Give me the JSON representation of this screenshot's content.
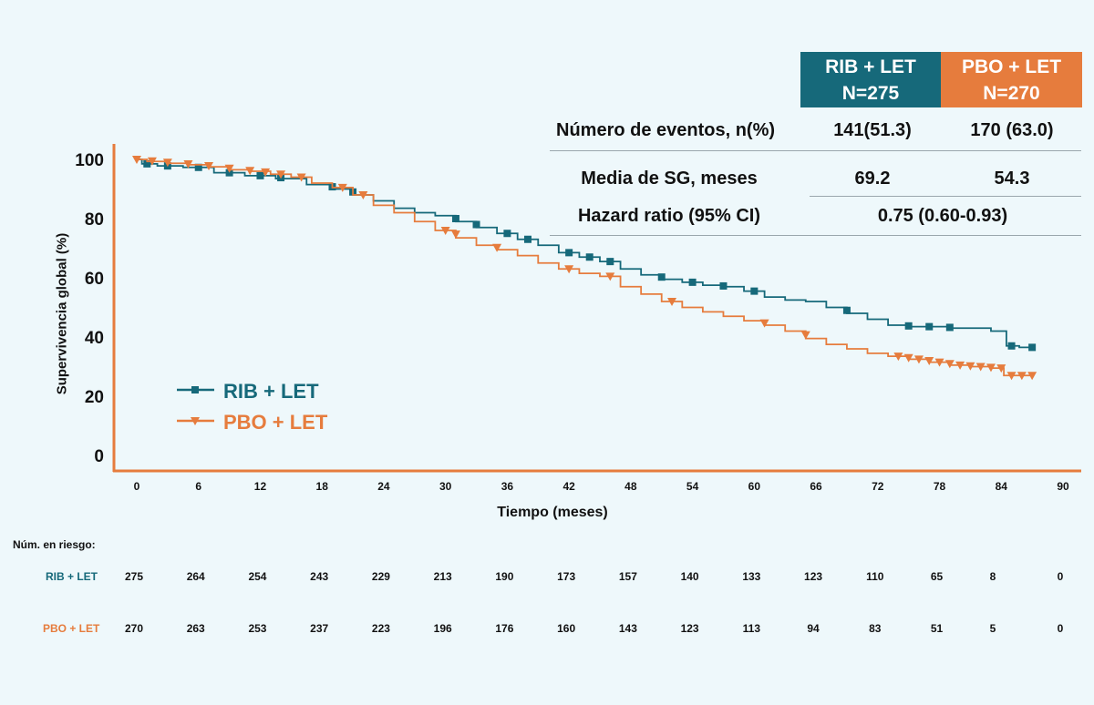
{
  "colors": {
    "rib": "#16697a",
    "pbo": "#e67c3d",
    "axis": "#e67c3d",
    "text": "#111111"
  },
  "table": {
    "header_rib": [
      "RIB + LET",
      "N=275"
    ],
    "header_pbo": [
      "PBO + LET",
      "N=270"
    ],
    "rows": [
      {
        "label": "Número de eventos, n(%)",
        "rib": "141(51.3)",
        "pbo": "170 (63.0)"
      },
      {
        "label": "Media de SG, meses",
        "rib": "69.2",
        "pbo": "54.3"
      },
      {
        "label": "Hazard ratio (95% CI)",
        "combined": "0.75 (0.60-0.93)"
      }
    ]
  },
  "chart_data": {
    "type": "line",
    "title": "",
    "xlabel": "Tiempo (meses)",
    "ylabel": "Supervivencia global (%)",
    "xlim": [
      0,
      90
    ],
    "ylim": [
      0,
      100
    ],
    "x_ticks": [
      "0",
      "6",
      "12",
      "18",
      "24",
      "30",
      "36",
      "42",
      "48",
      "54",
      "60",
      "66",
      "72",
      "78",
      "84",
      "90"
    ],
    "y_ticks": [
      "0",
      "20",
      "40",
      "60",
      "80",
      "100"
    ],
    "grid": false,
    "legend_position": "lower-left",
    "series": [
      {
        "name": "RIB + LET",
        "color": "#16697a",
        "marker": "square",
        "points": [
          [
            0,
            100
          ],
          [
            1,
            98.5
          ],
          [
            3,
            97.8
          ],
          [
            6,
            97.3
          ],
          [
            9,
            95.5
          ],
          [
            12,
            94.5
          ],
          [
            15,
            93.5
          ],
          [
            18,
            91.5
          ],
          [
            20,
            90
          ],
          [
            22,
            88
          ],
          [
            24,
            86
          ],
          [
            26,
            83.5
          ],
          [
            28,
            82
          ],
          [
            30,
            81
          ],
          [
            32,
            79
          ],
          [
            34,
            77
          ],
          [
            36,
            75
          ],
          [
            38,
            73
          ],
          [
            40,
            71
          ],
          [
            42,
            68.5
          ],
          [
            44,
            67
          ],
          [
            46,
            65.5
          ],
          [
            48,
            63
          ],
          [
            50,
            61
          ],
          [
            52,
            59.5
          ],
          [
            54,
            58.5
          ],
          [
            56,
            57.5
          ],
          [
            58,
            57
          ],
          [
            60,
            55.5
          ],
          [
            62,
            53.5
          ],
          [
            64,
            52.5
          ],
          [
            66,
            52
          ],
          [
            68,
            50
          ],
          [
            70,
            48
          ],
          [
            72,
            46
          ],
          [
            74,
            44
          ],
          [
            76,
            43.5
          ],
          [
            78,
            43.5
          ],
          [
            80,
            43
          ],
          [
            82,
            43
          ],
          [
            84,
            42
          ],
          [
            84.5,
            42
          ],
          [
            84.5,
            37
          ],
          [
            85.5,
            37
          ],
          [
            86,
            36.5
          ],
          [
            87,
            36.5
          ]
        ],
        "markers_x": [
          1,
          3,
          6,
          9,
          12,
          14,
          19,
          21,
          31,
          33,
          36,
          38,
          42,
          44,
          46,
          51,
          54,
          57,
          60,
          69,
          75,
          77,
          79,
          85,
          87
        ]
      },
      {
        "name": "PBO + LET",
        "color": "#e67c3d",
        "marker": "triangle-down",
        "points": [
          [
            0,
            100
          ],
          [
            2,
            99.3
          ],
          [
            4,
            98.7
          ],
          [
            6,
            98.2
          ],
          [
            8,
            97.5
          ],
          [
            10,
            96.5
          ],
          [
            12,
            96
          ],
          [
            14,
            95
          ],
          [
            16,
            94
          ],
          [
            18,
            92
          ],
          [
            20,
            90.5
          ],
          [
            22,
            88
          ],
          [
            24,
            84.5
          ],
          [
            26,
            82
          ],
          [
            28,
            79
          ],
          [
            30,
            76
          ],
          [
            32,
            73.5
          ],
          [
            34,
            71
          ],
          [
            36,
            69.5
          ],
          [
            38,
            67.5
          ],
          [
            40,
            65
          ],
          [
            42,
            63
          ],
          [
            44,
            61.5
          ],
          [
            46,
            60.5
          ],
          [
            48,
            57
          ],
          [
            50,
            54.5
          ],
          [
            52,
            52
          ],
          [
            54,
            50
          ],
          [
            56,
            48.5
          ],
          [
            58,
            47
          ],
          [
            60,
            45.5
          ],
          [
            62,
            44
          ],
          [
            64,
            42
          ],
          [
            66,
            39.5
          ],
          [
            68,
            37.5
          ],
          [
            70,
            36
          ],
          [
            72,
            34.5
          ],
          [
            74,
            33.5
          ],
          [
            76,
            32.5
          ],
          [
            78,
            31.5
          ],
          [
            80,
            30.5
          ],
          [
            82,
            30
          ],
          [
            84,
            29.5
          ],
          [
            84.5,
            27
          ],
          [
            86,
            27
          ],
          [
            87,
            27
          ]
        ],
        "markers_x": [
          0,
          1.5,
          3,
          5,
          7,
          9,
          11,
          12.5,
          14,
          16,
          20,
          22,
          30,
          31,
          35,
          42,
          46,
          52,
          61,
          65,
          74,
          75,
          76,
          77,
          78,
          79,
          80,
          81,
          82,
          83,
          84,
          85,
          86,
          87
        ]
      }
    ]
  },
  "risk": {
    "title": "Núm. en riesgo:",
    "rows": [
      {
        "label": "RIB + LET",
        "values": [
          "275",
          "264",
          "254",
          "243",
          "229",
          "213",
          "190",
          "173",
          "157",
          "140",
          "133",
          "123",
          "110",
          "65",
          "8",
          "0"
        ]
      },
      {
        "label": "PBO + LET",
        "values": [
          "270",
          "263",
          "253",
          "237",
          "223",
          "196",
          "176",
          "160",
          "143",
          "123",
          "113",
          "94",
          "83",
          "51",
          "5",
          "0"
        ]
      }
    ]
  }
}
